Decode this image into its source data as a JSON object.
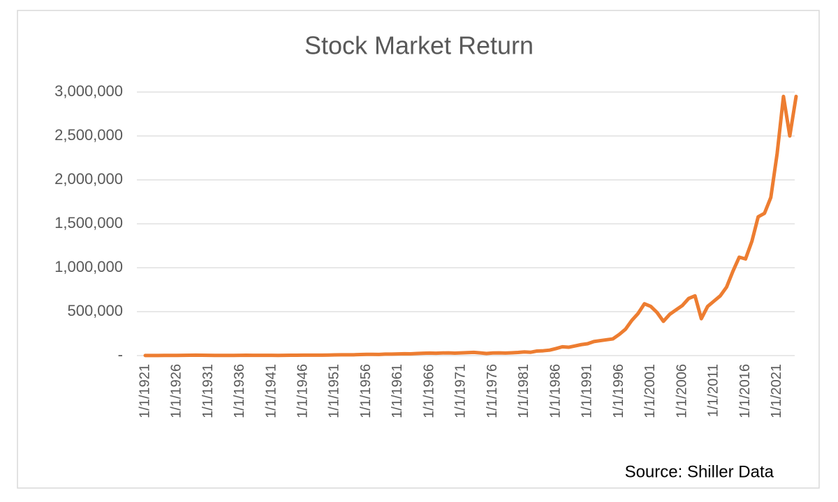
{
  "chart_data": {
    "type": "line",
    "title": "Stock Market Return",
    "categories": [
      "1/1/1921",
      null,
      null,
      null,
      null,
      "1/1/1926",
      null,
      null,
      null,
      null,
      "1/1/1931",
      null,
      null,
      null,
      null,
      "1/1/1936",
      null,
      null,
      null,
      null,
      "1/1/1941",
      null,
      null,
      null,
      null,
      "1/1/1946",
      null,
      null,
      null,
      null,
      "1/1/1951",
      null,
      null,
      null,
      null,
      "1/1/1956",
      null,
      null,
      null,
      null,
      "1/1/1961",
      null,
      null,
      null,
      null,
      "1/1/1966",
      null,
      null,
      null,
      null,
      "1/1/1971",
      null,
      null,
      null,
      null,
      "1/1/1976",
      null,
      null,
      null,
      null,
      "1/1/1981",
      null,
      null,
      null,
      null,
      "1/1/1986",
      null,
      null,
      null,
      null,
      "1/1/1991",
      null,
      null,
      null,
      null,
      "1/1/1996",
      null,
      null,
      null,
      null,
      "1/1/2001",
      null,
      null,
      null,
      null,
      "1/1/2006",
      null,
      null,
      null,
      null,
      "1/1/2011",
      null,
      null,
      null,
      null,
      "1/1/2016",
      null,
      null,
      null,
      null,
      "1/1/2021",
      null,
      null,
      null
    ],
    "series": [
      {
        "color": "#ed7d31",
        "values": [
          1000,
          1200,
          1400,
          1600,
          1900,
          2300,
          2800,
          3600,
          4800,
          3900,
          3000,
          1700,
          1500,
          2200,
          2300,
          3300,
          3900,
          2600,
          3100,
          2900,
          2700,
          2400,
          3000,
          3500,
          4200,
          5200,
          4800,
          5100,
          5300,
          6300,
          7500,
          8500,
          9000,
          9200,
          12000,
          14000,
          14000,
          13000,
          17000,
          17000,
          19000,
          21000,
          20000,
          24000,
          27000,
          29000,
          27000,
          30000,
          31000,
          28000,
          31000,
          34000,
          37000,
          31000,
          24000,
          30000,
          31000,
          29000,
          32000,
          36000,
          42000,
          38000,
          52000,
          55000,
          62000,
          80000,
          100000,
          95000,
          110000,
          125000,
          135000,
          160000,
          170000,
          180000,
          190000,
          240000,
          300000,
          400000,
          480000,
          590000,
          560000,
          490000,
          390000,
          470000,
          520000,
          570000,
          650000,
          680000,
          420000,
          560000,
          620000,
          680000,
          780000,
          960000,
          1120000,
          1100000,
          1300000,
          1580000,
          1620000,
          1800000,
          2300000,
          2950000,
          2500000,
          2950000
        ]
      }
    ],
    "ylim": [
      0,
      3000000
    ],
    "yticks": [
      {
        "value": 0,
        "label": "-"
      },
      {
        "value": 500000,
        "label": "500,000"
      },
      {
        "value": 1000000,
        "label": "1,000,000"
      },
      {
        "value": 1500000,
        "label": "1,500,000"
      },
      {
        "value": 2000000,
        "label": "2,000,000"
      },
      {
        "value": 2500000,
        "label": "2,500,000"
      },
      {
        "value": 3000000,
        "label": "3,000,000"
      }
    ],
    "grid": true,
    "annotation": "Source: Shiller Data"
  }
}
